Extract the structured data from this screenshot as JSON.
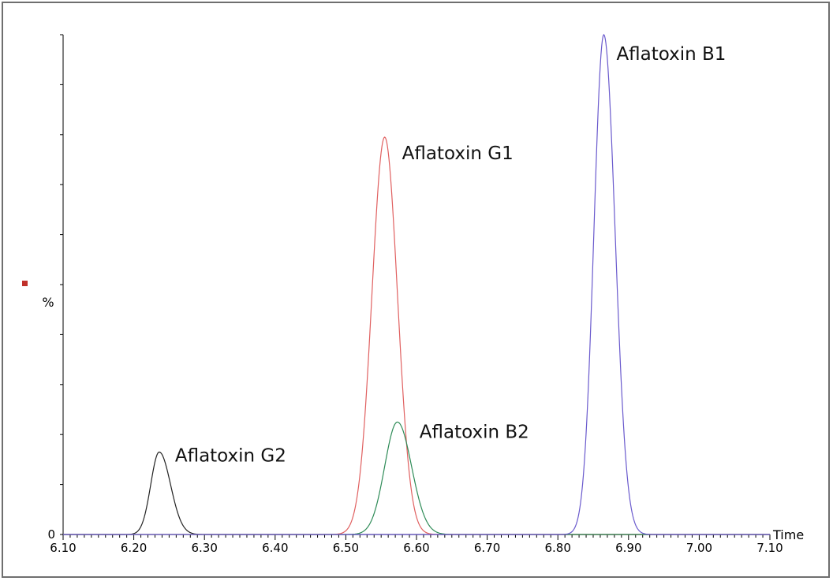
{
  "chart_data": {
    "type": "line",
    "title": "",
    "xlabel": "Time",
    "ylabel": "%",
    "xlim": [
      6.1,
      7.1
    ],
    "ylim": [
      0,
      100
    ],
    "x_ticks": [
      "6.10",
      "6.20",
      "6.30",
      "6.40",
      "6.50",
      "6.60",
      "6.70",
      "6.80",
      "6.90",
      "7.00",
      "7.10"
    ],
    "y_tick_labels": [
      "0"
    ],
    "grid": false,
    "legend": "none",
    "marker_color": "#c0302a",
    "series": [
      {
        "color": "#222222",
        "peaks": [
          {
            "time": 6.236,
            "height": 16.5,
            "sigma_left": 0.012,
            "sigma_right": 0.016
          }
        ]
      },
      {
        "color": "#e06060",
        "peaks": [
          {
            "time": 6.555,
            "height": 79.5,
            "sigma_left": 0.018,
            "sigma_right": 0.018
          }
        ]
      },
      {
        "color": "#2e8b57",
        "peaks": [
          {
            "time": 6.573,
            "height": 22.5,
            "sigma_left": 0.018,
            "sigma_right": 0.02
          }
        ]
      },
      {
        "color": "#6a5acd",
        "peaks": [
          {
            "time": 6.865,
            "height": 100,
            "sigma_left": 0.014,
            "sigma_right": 0.016
          }
        ]
      }
    ],
    "annotations": [
      {
        "text": "Aflatoxin G2",
        "time": 6.236,
        "value": 16.5
      },
      {
        "text": "Aflatoxin G1",
        "time": 6.555,
        "value": 79.5
      },
      {
        "text": "Aflatoxin B2",
        "time": 6.573,
        "value": 22.5
      },
      {
        "text": "Aflatoxin B1",
        "time": 6.865,
        "value": 100
      }
    ]
  }
}
